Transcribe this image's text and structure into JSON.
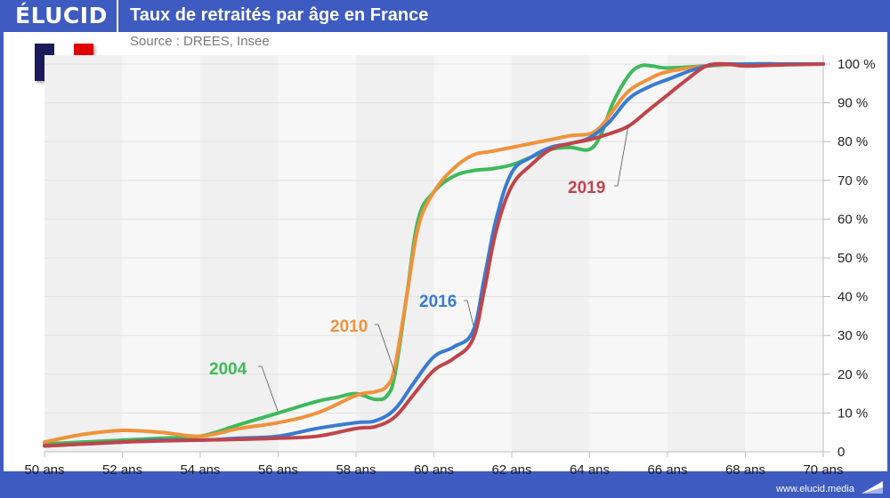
{
  "header": {
    "logo": "ÉLUCID",
    "title": "Taux de retraités par âge en France"
  },
  "subtitle": "Source : DREES, Insee",
  "flag": {
    "name": "france-flag",
    "colors": [
      "#1a1a5c",
      "#ffffff",
      "#e00000"
    ]
  },
  "footer": {
    "url": "www.elucid.media"
  },
  "chart_data": {
    "type": "line",
    "title": "Taux de retraités par âge en France",
    "subtitle": "Source : DREES, Insee",
    "xlabel": "",
    "ylabel": "",
    "xlim": [
      50,
      70
    ],
    "ylim": [
      0,
      100
    ],
    "x_ticks": [
      50,
      52,
      54,
      56,
      58,
      60,
      62,
      64,
      66,
      68,
      70
    ],
    "x_tick_labels": [
      "50 ans",
      "52 ans",
      "54 ans",
      "56 ans",
      "58 ans",
      "60 ans",
      "62 ans",
      "64 ans",
      "66 ans",
      "68 ans",
      "70 ans"
    ],
    "y_ticks": [
      0,
      10,
      20,
      30,
      40,
      50,
      60,
      70,
      80,
      90,
      100
    ],
    "y_tick_labels": [
      "0",
      "10 %",
      "20 %",
      "30 %",
      "40 %",
      "50 %",
      "60 %",
      "70 %",
      "80 %",
      "90 %",
      "100 %"
    ],
    "y_axis_position": "right",
    "grid": true,
    "legend": "inline labels",
    "series": [
      {
        "name": "2004",
        "color": "#3dba5a",
        "x": [
          50,
          51,
          52,
          53,
          54,
          55,
          56,
          57,
          57.5,
          58,
          58.5,
          58.8,
          59,
          59.3,
          59.6,
          60,
          60.5,
          61,
          61.5,
          62,
          62.5,
          63,
          63.5,
          64,
          64.3,
          64.6,
          65,
          65.3,
          65.6,
          66,
          67,
          68,
          69,
          70
        ],
        "values": [
          2,
          2.5,
          3,
          3.5,
          4,
          7,
          10,
          13,
          14,
          15,
          13.5,
          14.5,
          20,
          40,
          60,
          67,
          71,
          72.5,
          73,
          74,
          76,
          78,
          78.5,
          78,
          82,
          90,
          97,
          99.5,
          99.5,
          99,
          99.5,
          100,
          100,
          100
        ]
      },
      {
        "name": "2010",
        "color": "#f0923a",
        "x": [
          50,
          51,
          52,
          53,
          54,
          55,
          56,
          57,
          58,
          58.5,
          58.8,
          59,
          59.3,
          59.6,
          60,
          60.5,
          61,
          61.5,
          62,
          62.5,
          63,
          63.5,
          64,
          64.3,
          64.6,
          65,
          65.5,
          66,
          67,
          68,
          69,
          70
        ],
        "values": [
          2.5,
          4.5,
          5.5,
          5,
          4,
          6,
          7.5,
          10,
          14.5,
          15.5,
          17,
          22,
          40,
          58,
          67,
          73,
          76.5,
          77.5,
          78.5,
          79.5,
          80.5,
          81.5,
          82,
          84,
          88,
          93,
          96,
          98,
          99.5,
          100,
          100,
          100
        ]
      },
      {
        "name": "2016",
        "color": "#3a7bd0",
        "x": [
          50,
          51,
          52,
          53,
          54,
          55,
          56,
          57,
          58,
          58.5,
          59,
          59.5,
          60,
          60.5,
          61,
          61.3,
          61.6,
          62,
          62.5,
          63,
          63.5,
          64,
          64.5,
          65,
          65.5,
          66,
          67,
          68,
          69,
          70
        ],
        "values": [
          1.5,
          2,
          2.5,
          3,
          3,
          3.5,
          4,
          6,
          7.5,
          8,
          11,
          18,
          24.5,
          27,
          31,
          45,
          60,
          72,
          76,
          78.5,
          79.5,
          81,
          85,
          91,
          94,
          96,
          99.5,
          100,
          100,
          100
        ]
      },
      {
        "name": "2019",
        "color": "#c0444a",
        "x": [
          50,
          51,
          52,
          53,
          54,
          55,
          56,
          57,
          58,
          58.5,
          59,
          59.5,
          60,
          60.5,
          61,
          61.3,
          61.6,
          62,
          62.5,
          63,
          63.5,
          64,
          64.5,
          65,
          65.5,
          66,
          66.5,
          67,
          67.5,
          68,
          69,
          70
        ],
        "values": [
          1.5,
          2,
          2.5,
          2.8,
          3,
          3.2,
          3.5,
          4,
          6,
          6.5,
          9,
          15,
          21,
          24,
          29,
          42,
          57,
          68.5,
          74,
          78,
          79.5,
          80.5,
          82,
          84,
          88,
          92,
          96,
          99.5,
          100,
          99.5,
          99.8,
          100
        ]
      }
    ],
    "annotations": [
      {
        "text": "2004",
        "series": "2004"
      },
      {
        "text": "2010",
        "series": "2010"
      },
      {
        "text": "2016",
        "series": "2016"
      },
      {
        "text": "2019",
        "series": "2019"
      }
    ]
  }
}
